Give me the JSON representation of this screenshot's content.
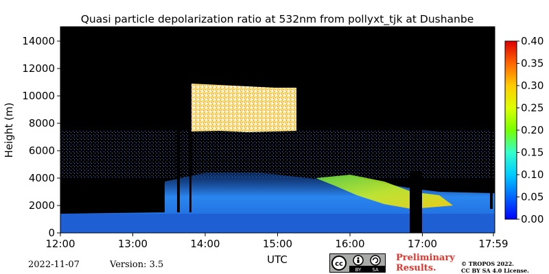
{
  "chart_data": {
    "type": "heatmap",
    "title": "Quasi particle depolarization ratio at 532nm from pollyxt_tjk at Dushanbe",
    "xlabel": "UTC",
    "ylabel": "Height (m)",
    "x_ticks": [
      "12:00",
      "13:00",
      "14:00",
      "15:00",
      "16:00",
      "17:00",
      "17:59"
    ],
    "y_ticks": [
      "0",
      "2000",
      "4000",
      "6000",
      "8000",
      "10000",
      "12000",
      "14000"
    ],
    "ylim": [
      0,
      15000
    ],
    "xlim": [
      "12:00",
      "17:59"
    ],
    "colorbar": {
      "range": [
        0.0,
        0.4
      ],
      "ticks": [
        "0.00",
        "0.05",
        "0.10",
        "0.15",
        "0.20",
        "0.25",
        "0.30",
        "0.35",
        "0.40"
      ],
      "colormap": "jet"
    },
    "background_color": "#000000",
    "layers": [
      {
        "height_range": [
          0,
          1500
        ],
        "depol": 0.03,
        "color": "#1e6fe0"
      },
      {
        "height_range": [
          1500,
          4500
        ],
        "depol": 0.04,
        "color": "#2b8cf0"
      },
      {
        "height_range": [
          7500,
          10500
        ],
        "time_range": [
          "13:50",
          "15:20"
        ],
        "depol": 0.3,
        "color": "#fff0b0"
      },
      {
        "height_range": [
          1000,
          4000
        ],
        "time_range": [
          "16:00",
          "17:45"
        ],
        "depol": 0.2,
        "color": "#d8e020"
      }
    ]
  },
  "footer": {
    "date": "2022-11-07",
    "version": "Version: 3.5",
    "preliminary_line1": "Preliminary",
    "preliminary_line2": "Results.",
    "license_line1": "© TROPOS 2022.",
    "license_line2": "CC BY SA 4.0 License."
  },
  "cc_badge": {
    "by": "BY",
    "sa": "SA"
  }
}
